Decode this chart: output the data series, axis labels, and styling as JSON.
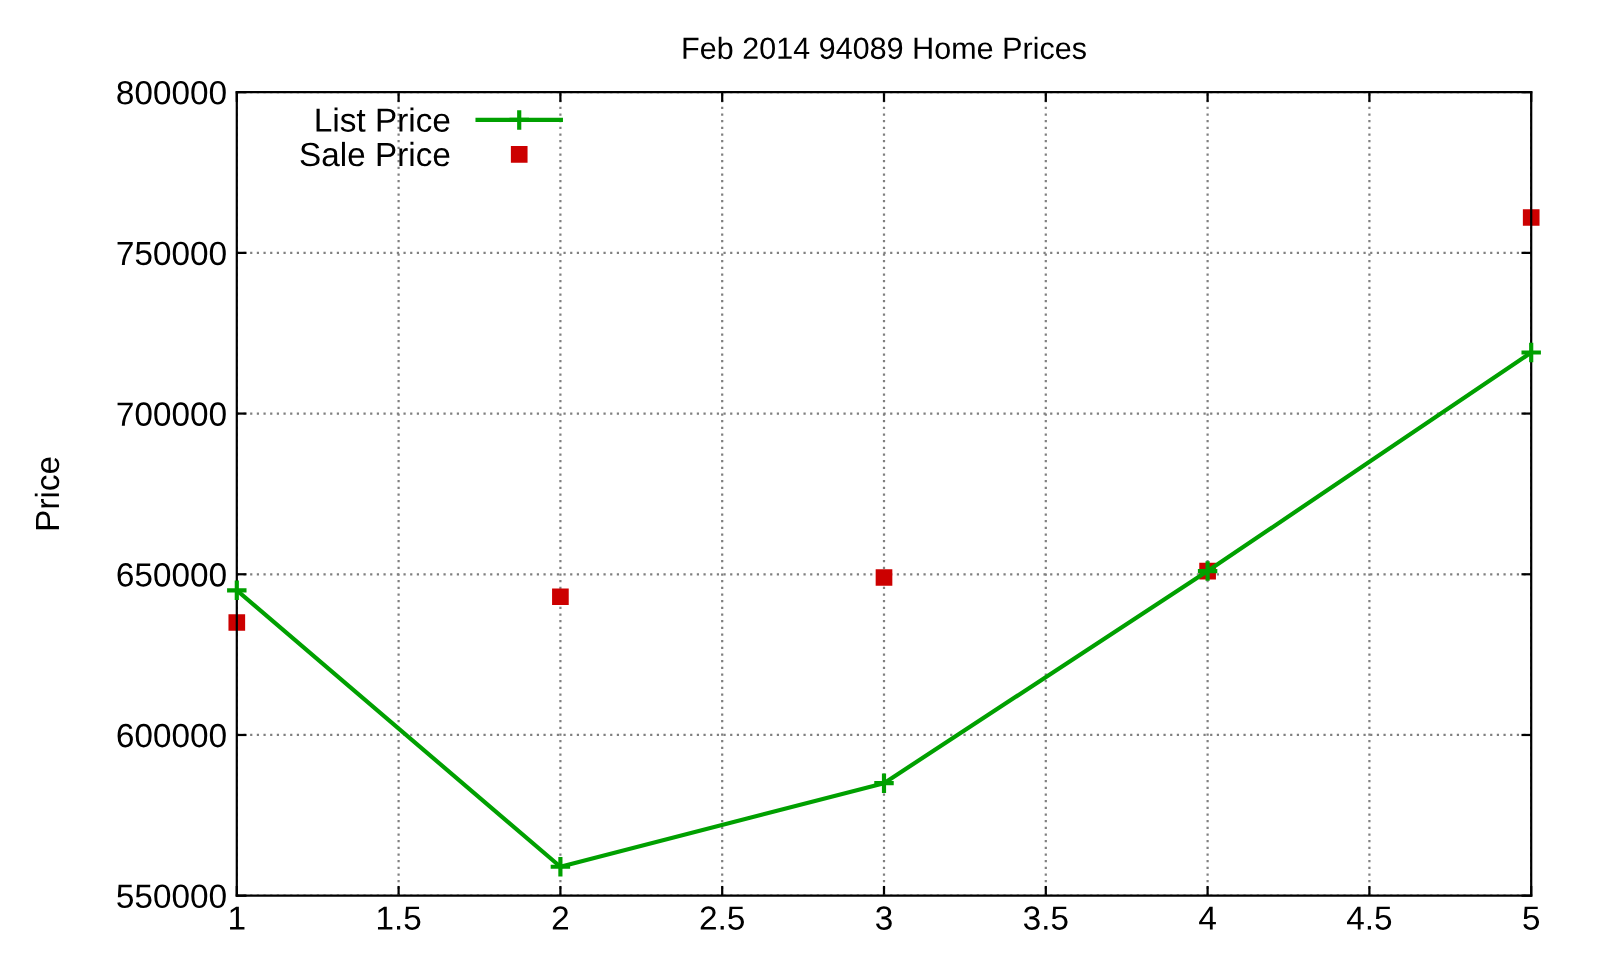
{
  "chart_data": {
    "type": "line",
    "title": "Feb 2014 94089 Home Prices",
    "ylabel": "Price",
    "x": [
      1,
      2,
      3,
      4,
      5
    ],
    "series": [
      {
        "name": "List Price",
        "color": "#00a000",
        "values": [
          645000,
          559000,
          585000,
          651000,
          719000
        ],
        "marker": "cross",
        "line_style": "solid"
      },
      {
        "name": "Sale Price",
        "type": "scatter",
        "color": "#cc0000",
        "values": [
          635000,
          643000,
          649000,
          651000,
          761000
        ],
        "marker": "square"
      }
    ],
    "xlim": [
      1,
      5
    ],
    "xticks": [
      1,
      1.5,
      2,
      2.5,
      3,
      3.5,
      4,
      4.5,
      5
    ],
    "ylim": [
      550000,
      800000
    ],
    "yticks": [
      550000,
      600000,
      650000,
      700000,
      750000,
      800000
    ],
    "grid": true,
    "legend": "top left"
  }
}
